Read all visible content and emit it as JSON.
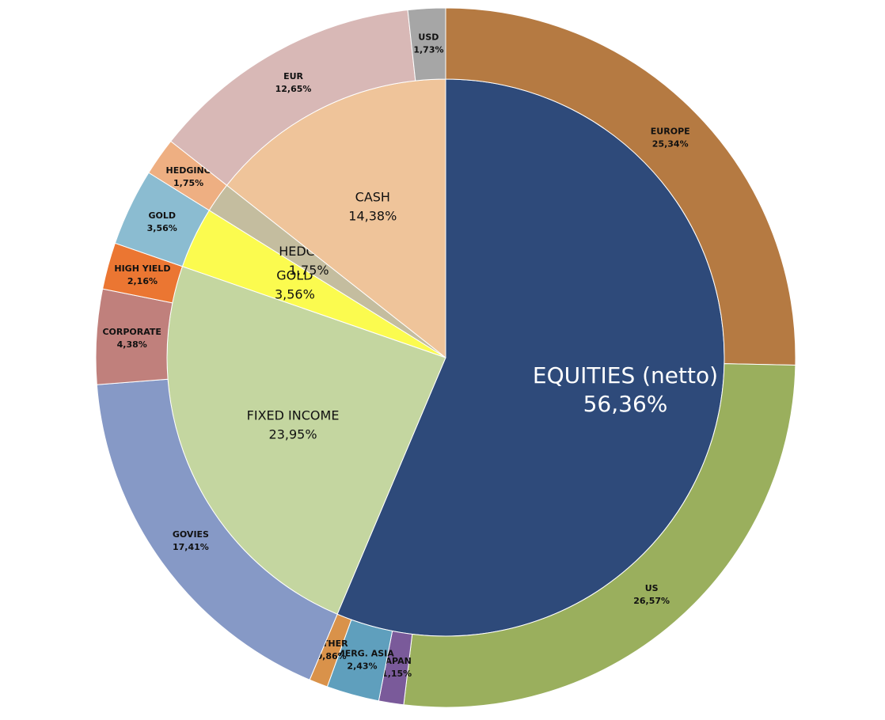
{
  "chart_data": {
    "type": "sunburst",
    "series": [
      {
        "categories": [
          "EQUITIES (netto)",
          "FIXED INCOME",
          "GOLD",
          "HEDGING",
          "CASH"
        ],
        "values": [
          56.36,
          23.95,
          3.56,
          1.75,
          14.38
        ],
        "value_labels": [
          "56,36%",
          "23,95%",
          "3,56%",
          "1,75%",
          "14,38%"
        ],
        "colors": [
          "#2e4a7a",
          "#c4d6a0",
          "#fbfb4f",
          "#c4bd9f",
          "#efc49a"
        ]
      },
      {
        "categories": [
          "EUROPE",
          "US",
          "JAPAN",
          "EMERG. ASIA",
          "OTHER",
          "GOVIES",
          "CORPORATE",
          "HIGH YIELD",
          "GOLD",
          "HEDGING",
          "EUR",
          "USD"
        ],
        "values": [
          25.34,
          26.57,
          1.15,
          2.43,
          0.86,
          17.41,
          4.38,
          2.16,
          3.56,
          1.75,
          12.65,
          1.73
        ],
        "value_labels": [
          "25,34%",
          "26,57%",
          "1,15%",
          "2,43%",
          "0,86%",
          "17,41%",
          "4,38%",
          "2,16%",
          "3,56%",
          "1,75%",
          "12,65%",
          "1,73%"
        ],
        "colors": [
          "#b57a42",
          "#9aaf5d",
          "#7a5a9a",
          "#5f9fbd",
          "#d9924a",
          "#8699c6",
          "#c0807c",
          "#eb7632",
          "#8bbcd1",
          "#eeaf82",
          "#d8b8b6",
          "#a6a6a6"
        ]
      }
    ]
  }
}
